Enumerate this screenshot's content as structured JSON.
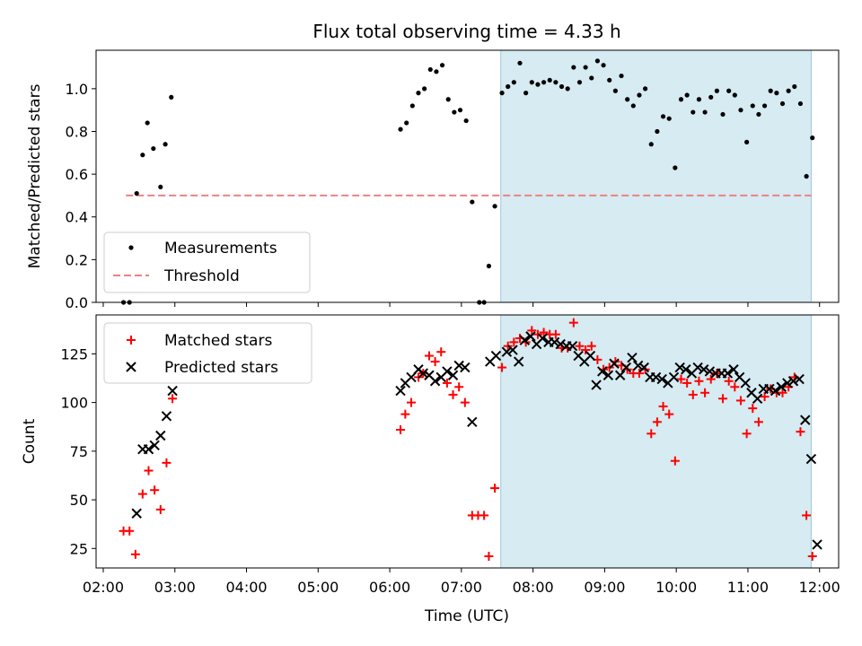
{
  "chart_data": [
    {
      "type": "scatter",
      "title": "Flux total observing time = 4.33 h",
      "xlabel": "",
      "ylabel": "Matched/Predicted stars",
      "xlim": [
        "01:54",
        "12:16"
      ],
      "ylim": [
        0,
        1.18
      ],
      "yticks": [
        0.0,
        0.2,
        0.4,
        0.6,
        0.8,
        1.0
      ],
      "ytick_labels": [
        "0.0",
        "0.2",
        "0.4",
        "0.6",
        "0.8",
        "1.0"
      ],
      "shaded_span": [
        "07:33",
        "11:53"
      ],
      "legend": {
        "placement": "lower-left",
        "entries": [
          "Measurements",
          "Threshold"
        ]
      },
      "threshold": {
        "name": "Threshold",
        "value": 0.5,
        "x_range": [
          "02:19",
          "11:53"
        ],
        "color": "#f08080",
        "style": "dashed"
      },
      "series": [
        {
          "name": "Measurements",
          "color": "#000000",
          "points": [
            [
              "02:17",
              0.0
            ],
            [
              "02:22",
              0.0
            ],
            [
              "02:28",
              0.51
            ],
            [
              "02:33",
              0.69
            ],
            [
              "02:37",
              0.84
            ],
            [
              "02:42",
              0.72
            ],
            [
              "02:48",
              0.54
            ],
            [
              "02:52",
              0.74
            ],
            [
              "02:57",
              0.96
            ],
            [
              "06:09",
              0.81
            ],
            [
              "06:14",
              0.84
            ],
            [
              "06:19",
              0.92
            ],
            [
              "06:24",
              0.98
            ],
            [
              "06:29",
              1.0
            ],
            [
              "06:34",
              1.09
            ],
            [
              "06:39",
              1.08
            ],
            [
              "06:44",
              1.11
            ],
            [
              "06:49",
              0.95
            ],
            [
              "06:54",
              0.89
            ],
            [
              "06:59",
              0.9
            ],
            [
              "07:04",
              0.85
            ],
            [
              "07:09",
              0.47
            ],
            [
              "07:15",
              0.0
            ],
            [
              "07:19",
              0.0
            ],
            [
              "07:23",
              0.17
            ],
            [
              "07:28",
              0.45
            ],
            [
              "07:34",
              0.98
            ],
            [
              "07:39",
              1.01
            ],
            [
              "07:44",
              1.03
            ],
            [
              "07:49",
              1.12
            ],
            [
              "07:54",
              0.98
            ],
            [
              "07:59",
              1.03
            ],
            [
              "08:04",
              1.02
            ],
            [
              "08:09",
              1.03
            ],
            [
              "08:14",
              1.04
            ],
            [
              "08:19",
              1.03
            ],
            [
              "08:24",
              1.01
            ],
            [
              "08:29",
              1.0
            ],
            [
              "08:34",
              1.1
            ],
            [
              "08:39",
              1.03
            ],
            [
              "08:44",
              1.1
            ],
            [
              "08:49",
              1.05
            ],
            [
              "08:54",
              1.13
            ],
            [
              "08:59",
              1.11
            ],
            [
              "09:04",
              1.04
            ],
            [
              "09:09",
              0.99
            ],
            [
              "09:14",
              1.06
            ],
            [
              "09:19",
              0.95
            ],
            [
              "09:24",
              0.92
            ],
            [
              "09:29",
              0.97
            ],
            [
              "09:34",
              1.0
            ],
            [
              "09:39",
              0.74
            ],
            [
              "09:44",
              0.8
            ],
            [
              "09:49",
              0.87
            ],
            [
              "09:54",
              0.86
            ],
            [
              "09:59",
              0.63
            ],
            [
              "10:04",
              0.95
            ],
            [
              "10:09",
              0.97
            ],
            [
              "10:14",
              0.89
            ],
            [
              "10:19",
              0.95
            ],
            [
              "10:24",
              0.89
            ],
            [
              "10:29",
              0.96
            ],
            [
              "10:34",
              0.99
            ],
            [
              "10:39",
              0.88
            ],
            [
              "10:44",
              0.99
            ],
            [
              "10:49",
              0.97
            ],
            [
              "10:54",
              0.9
            ],
            [
              "10:59",
              0.75
            ],
            [
              "11:04",
              0.92
            ],
            [
              "11:09",
              0.88
            ],
            [
              "11:14",
              0.92
            ],
            [
              "11:19",
              0.99
            ],
            [
              "11:24",
              0.98
            ],
            [
              "11:29",
              0.93
            ],
            [
              "11:34",
              0.99
            ],
            [
              "11:39",
              1.01
            ],
            [
              "11:44",
              0.93
            ],
            [
              "11:49",
              0.59
            ],
            [
              "11:54",
              0.77
            ]
          ]
        }
      ]
    },
    {
      "type": "scatter",
      "title": "",
      "xlabel": "Time (UTC)",
      "ylabel": "Count",
      "xlim": [
        "01:54",
        "12:16"
      ],
      "ylim": [
        15,
        145
      ],
      "yticks": [
        25,
        50,
        75,
        100,
        125
      ],
      "ytick_labels": [
        "25",
        "50",
        "75",
        "100",
        "125"
      ],
      "xticks": [
        "02:00",
        "03:00",
        "04:00",
        "05:00",
        "06:00",
        "07:00",
        "08:00",
        "09:00",
        "10:00",
        "11:00",
        "12:00"
      ],
      "xtick_labels": [
        "02:00",
        "03:00",
        "04:00",
        "05:00",
        "06:00",
        "07:00",
        "08:00",
        "09:00",
        "10:00",
        "11:00",
        "12:00"
      ],
      "shaded_span": [
        "07:33",
        "11:53"
      ],
      "legend": {
        "placement": "upper-left",
        "entries": [
          "Matched stars",
          "Predicted stars"
        ]
      },
      "series": [
        {
          "name": "Matched stars",
          "marker": "+",
          "color": "#ff0000",
          "points": [
            [
              "02:17",
              34
            ],
            [
              "02:22",
              34
            ],
            [
              "02:27",
              22
            ],
            [
              "02:33",
              53
            ],
            [
              "02:38",
              65
            ],
            [
              "02:43",
              55
            ],
            [
              "02:48",
              45
            ],
            [
              "02:53",
              69
            ],
            [
              "02:58",
              102
            ],
            [
              "06:09",
              86
            ],
            [
              "06:13",
              94
            ],
            [
              "06:18",
              100
            ],
            [
              "06:24",
              113
            ],
            [
              "06:28",
              115
            ],
            [
              "06:33",
              124
            ],
            [
              "06:38",
              121
            ],
            [
              "06:43",
              126
            ],
            [
              "06:48",
              110
            ],
            [
              "06:53",
              104
            ],
            [
              "06:58",
              108
            ],
            [
              "07:03",
              100
            ],
            [
              "07:09",
              42
            ],
            [
              "07:14",
              42
            ],
            [
              "07:19",
              42
            ],
            [
              "07:23",
              21
            ],
            [
              "07:28",
              56
            ],
            [
              "07:34",
              118
            ],
            [
              "07:39",
              129
            ],
            [
              "07:44",
              131
            ],
            [
              "07:49",
              133
            ],
            [
              "07:54",
              131
            ],
            [
              "07:59",
              137
            ],
            [
              "08:04",
              135
            ],
            [
              "08:09",
              136
            ],
            [
              "08:14",
              135
            ],
            [
              "08:19",
              135
            ],
            [
              "08:24",
              128
            ],
            [
              "08:29",
              128
            ],
            [
              "08:34",
              141
            ],
            [
              "08:39",
              129
            ],
            [
              "08:44",
              127
            ],
            [
              "08:49",
              129
            ],
            [
              "08:54",
              122
            ],
            [
              "08:59",
              117
            ],
            [
              "09:04",
              118
            ],
            [
              "09:09",
              121
            ],
            [
              "09:14",
              119
            ],
            [
              "09:19",
              117
            ],
            [
              "09:24",
              115
            ],
            [
              "09:29",
              115
            ],
            [
              "09:34",
              117
            ],
            [
              "09:39",
              84
            ],
            [
              "09:44",
              90
            ],
            [
              "09:49",
              98
            ],
            [
              "09:54",
              94
            ],
            [
              "09:59",
              70
            ],
            [
              "10:04",
              112
            ],
            [
              "10:09",
              110
            ],
            [
              "10:14",
              104
            ],
            [
              "10:19",
              111
            ],
            [
              "10:24",
              105
            ],
            [
              "10:29",
              112
            ],
            [
              "10:34",
              115
            ],
            [
              "10:39",
              102
            ],
            [
              "10:44",
              111
            ],
            [
              "10:49",
              108
            ],
            [
              "10:54",
              101
            ],
            [
              "10:59",
              84
            ],
            [
              "11:04",
              97
            ],
            [
              "11:09",
              90
            ],
            [
              "11:14",
              103
            ],
            [
              "11:19",
              107
            ],
            [
              "11:24",
              105
            ],
            [
              "11:29",
              105
            ],
            [
              "11:34",
              108
            ],
            [
              "11:39",
              113
            ],
            [
              "11:44",
              85
            ],
            [
              "11:49",
              42
            ],
            [
              "11:54",
              21
            ]
          ]
        },
        {
          "name": "Predicted stars",
          "marker": "x",
          "color": "#000000",
          "points": [
            [
              "02:28",
              43
            ],
            [
              "02:33",
              76
            ],
            [
              "02:38",
              76
            ],
            [
              "02:43",
              78
            ],
            [
              "02:48",
              83
            ],
            [
              "02:53",
              93
            ],
            [
              "02:58",
              106
            ],
            [
              "06:09",
              106
            ],
            [
              "06:13",
              110
            ],
            [
              "06:18",
              113
            ],
            [
              "06:24",
              117
            ],
            [
              "06:28",
              115
            ],
            [
              "06:33",
              114
            ],
            [
              "06:38",
              111
            ],
            [
              "06:43",
              113
            ],
            [
              "06:48",
              116
            ],
            [
              "06:53",
              114
            ],
            [
              "06:58",
              119
            ],
            [
              "07:03",
              118
            ],
            [
              "07:09",
              90
            ],
            [
              "07:24",
              121
            ],
            [
              "07:29",
              124
            ],
            [
              "07:38",
              126
            ],
            [
              "07:43",
              127
            ],
            [
              "07:48",
              121
            ],
            [
              "07:53",
              132
            ],
            [
              "07:58",
              134
            ],
            [
              "08:03",
              130
            ],
            [
              "08:08",
              133
            ],
            [
              "08:13",
              131
            ],
            [
              "08:18",
              131
            ],
            [
              "08:23",
              130
            ],
            [
              "08:28",
              129
            ],
            [
              "08:33",
              129
            ],
            [
              "08:38",
              124
            ],
            [
              "08:43",
              121
            ],
            [
              "08:48",
              124
            ],
            [
              "08:53",
              109
            ],
            [
              "08:58",
              116
            ],
            [
              "09:03",
              114
            ],
            [
              "09:08",
              120
            ],
            [
              "09:13",
              114
            ],
            [
              "09:18",
              118
            ],
            [
              "09:23",
              123
            ],
            [
              "09:28",
              119
            ],
            [
              "09:33",
              118
            ],
            [
              "09:38",
              113
            ],
            [
              "09:43",
              113
            ],
            [
              "09:48",
              112
            ],
            [
              "09:53",
              110
            ],
            [
              "09:58",
              113
            ],
            [
              "10:03",
              118
            ],
            [
              "10:08",
              117
            ],
            [
              "10:13",
              115
            ],
            [
              "10:18",
              118
            ],
            [
              "10:23",
              117
            ],
            [
              "10:28",
              116
            ],
            [
              "10:33",
              115
            ],
            [
              "10:38",
              115
            ],
            [
              "10:43",
              115
            ],
            [
              "10:48",
              117
            ],
            [
              "10:53",
              113
            ],
            [
              "10:58",
              110
            ],
            [
              "11:03",
              105
            ],
            [
              "11:08",
              102
            ],
            [
              "11:13",
              107
            ],
            [
              "11:18",
              107
            ],
            [
              "11:23",
              106
            ],
            [
              "11:28",
              108
            ],
            [
              "11:33",
              110
            ],
            [
              "11:38",
              111
            ],
            [
              "11:43",
              112
            ],
            [
              "11:48",
              91
            ],
            [
              "11:53",
              71
            ],
            [
              "11:58",
              27
            ]
          ]
        }
      ]
    }
  ]
}
